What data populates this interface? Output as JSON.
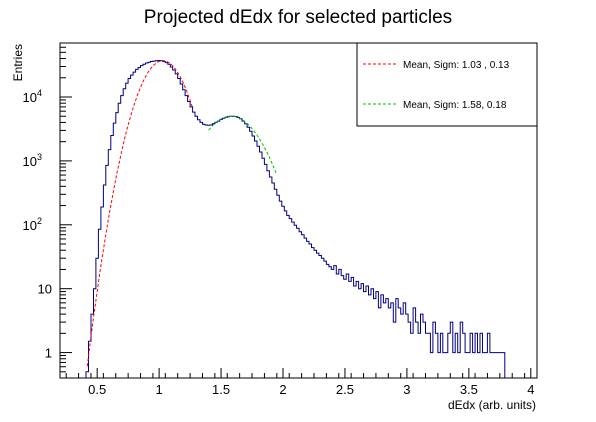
{
  "chart_data": {
    "type": "histogram",
    "title": "Projected dEdx for selected particles",
    "xlabel": "dEdx (arb. units)",
    "ylabel": "Entries",
    "xlim": [
      0.2,
      4.05
    ],
    "ylim": [
      0.4,
      70000
    ],
    "yscale": "log",
    "grid": false,
    "x_ticks": [
      {
        "value": 0.5,
        "label": "0.5"
      },
      {
        "value": 1.0,
        "label": "1"
      },
      {
        "value": 1.5,
        "label": "1.5"
      },
      {
        "value": 2.0,
        "label": "2"
      },
      {
        "value": 2.5,
        "label": "2.5"
      },
      {
        "value": 3.0,
        "label": "3"
      },
      {
        "value": 3.5,
        "label": "3.5"
      },
      {
        "value": 4.0,
        "label": "4"
      }
    ],
    "y_ticks": [
      {
        "value": 1,
        "label": "1"
      },
      {
        "value": 10,
        "label": "10"
      },
      {
        "value": 100,
        "label": "10",
        "exp": "2"
      },
      {
        "value": 1000,
        "label": "10",
        "exp": "3"
      },
      {
        "value": 10000,
        "label": "10",
        "exp": "4"
      }
    ],
    "histogram": {
      "color": "#000080",
      "bin_width": 0.02,
      "points": [
        [
          0.42,
          0.5
        ],
        [
          0.44,
          1.5
        ],
        [
          0.46,
          4
        ],
        [
          0.48,
          10
        ],
        [
          0.5,
          30
        ],
        [
          0.52,
          85
        ],
        [
          0.54,
          190
        ],
        [
          0.56,
          420
        ],
        [
          0.58,
          850
        ],
        [
          0.6,
          1500
        ],
        [
          0.62,
          2500
        ],
        [
          0.64,
          3900
        ],
        [
          0.66,
          5700
        ],
        [
          0.68,
          8000
        ],
        [
          0.7,
          10500
        ],
        [
          0.72,
          13500
        ],
        [
          0.74,
          16500
        ],
        [
          0.76,
          19500
        ],
        [
          0.78,
          22000
        ],
        [
          0.8,
          24500
        ],
        [
          0.82,
          27000
        ],
        [
          0.84,
          29000
        ],
        [
          0.86,
          31000
        ],
        [
          0.88,
          32500
        ],
        [
          0.9,
          34000
        ],
        [
          0.92,
          35000
        ],
        [
          0.94,
          36000
        ],
        [
          0.96,
          36500
        ],
        [
          0.98,
          37000
        ],
        [
          1.0,
          37200
        ],
        [
          1.02,
          36800
        ],
        [
          1.04,
          36000
        ],
        [
          1.06,
          34500
        ],
        [
          1.08,
          32500
        ],
        [
          1.1,
          29500
        ],
        [
          1.12,
          26500
        ],
        [
          1.14,
          23000
        ],
        [
          1.16,
          19500
        ],
        [
          1.18,
          16000
        ],
        [
          1.2,
          13000
        ],
        [
          1.22,
          10500
        ],
        [
          1.24,
          8500
        ],
        [
          1.26,
          7000
        ],
        [
          1.28,
          5800
        ],
        [
          1.3,
          5000
        ],
        [
          1.32,
          4400
        ],
        [
          1.34,
          4000
        ],
        [
          1.36,
          3750
        ],
        [
          1.38,
          3650
        ],
        [
          1.4,
          3600
        ],
        [
          1.42,
          3650
        ],
        [
          1.44,
          3800
        ],
        [
          1.46,
          4000
        ],
        [
          1.48,
          4200
        ],
        [
          1.5,
          4450
        ],
        [
          1.52,
          4650
        ],
        [
          1.54,
          4800
        ],
        [
          1.56,
          4900
        ],
        [
          1.58,
          5000
        ],
        [
          1.6,
          5000
        ],
        [
          1.62,
          4950
        ],
        [
          1.64,
          4800
        ],
        [
          1.66,
          4550
        ],
        [
          1.68,
          4200
        ],
        [
          1.7,
          3800
        ],
        [
          1.72,
          3350
        ],
        [
          1.74,
          2900
        ],
        [
          1.76,
          2450
        ],
        [
          1.78,
          2050
        ],
        [
          1.8,
          1700
        ],
        [
          1.82,
          1380
        ],
        [
          1.84,
          1100
        ],
        [
          1.86,
          880
        ],
        [
          1.88,
          700
        ],
        [
          1.9,
          560
        ],
        [
          1.92,
          450
        ],
        [
          1.94,
          360
        ],
        [
          1.96,
          290
        ],
        [
          1.98,
          235
        ],
        [
          2.0,
          195
        ],
        [
          2.02,
          165
        ],
        [
          2.04,
          140
        ],
        [
          2.06,
          125
        ],
        [
          2.08,
          110
        ],
        [
          2.1,
          98
        ],
        [
          2.12,
          88
        ],
        [
          2.14,
          78
        ],
        [
          2.16,
          70
        ],
        [
          2.18,
          62
        ],
        [
          2.2,
          55
        ],
        [
          2.22,
          50
        ],
        [
          2.24,
          44
        ],
        [
          2.26,
          40
        ],
        [
          2.28,
          36
        ],
        [
          2.3,
          33
        ],
        [
          2.32,
          30
        ],
        [
          2.34,
          27
        ],
        [
          2.36,
          24
        ],
        [
          2.38,
          22
        ],
        [
          2.4,
          20
        ],
        [
          2.42,
          23
        ],
        [
          2.44,
          17
        ],
        [
          2.46,
          20
        ],
        [
          2.48,
          16
        ],
        [
          2.5,
          14
        ],
        [
          2.52,
          17
        ],
        [
          2.54,
          13
        ],
        [
          2.56,
          15
        ],
        [
          2.58,
          11
        ],
        [
          2.6,
          13
        ],
        [
          2.62,
          10
        ],
        [
          2.64,
          12
        ],
        [
          2.66,
          9
        ],
        [
          2.68,
          11
        ],
        [
          2.7,
          8
        ],
        [
          2.72,
          10
        ],
        [
          2.74,
          7
        ],
        [
          2.76,
          9
        ],
        [
          2.78,
          5
        ],
        [
          2.8,
          8
        ],
        [
          2.82,
          6
        ],
        [
          2.84,
          7
        ],
        [
          2.86,
          5
        ],
        [
          2.88,
          6
        ],
        [
          2.9,
          3
        ],
        [
          2.92,
          7
        ],
        [
          2.94,
          5
        ],
        [
          2.96,
          4
        ],
        [
          2.98,
          6
        ],
        [
          3.0,
          4
        ],
        [
          3.02,
          3
        ],
        [
          3.04,
          2
        ],
        [
          3.06,
          5
        ],
        [
          3.08,
          3
        ],
        [
          3.1,
          2
        ],
        [
          3.12,
          4
        ],
        [
          3.14,
          3
        ],
        [
          3.16,
          2
        ],
        [
          3.18,
          2
        ],
        [
          3.2,
          1
        ],
        [
          3.22,
          3
        ],
        [
          3.24,
          2
        ],
        [
          3.26,
          1
        ],
        [
          3.28,
          2
        ],
        [
          3.3,
          1
        ],
        [
          3.32,
          1
        ],
        [
          3.34,
          2
        ],
        [
          3.36,
          3
        ],
        [
          3.38,
          1
        ],
        [
          3.4,
          2
        ],
        [
          3.42,
          1
        ],
        [
          3.44,
          3
        ],
        [
          3.46,
          2
        ],
        [
          3.48,
          1
        ],
        [
          3.5,
          1
        ],
        [
          3.52,
          2
        ],
        [
          3.54,
          1
        ],
        [
          3.56,
          2
        ],
        [
          3.58,
          1
        ],
        [
          3.6,
          2
        ],
        [
          3.62,
          1
        ],
        [
          3.64,
          1
        ],
        [
          3.66,
          2
        ],
        [
          3.68,
          1
        ],
        [
          3.7,
          1
        ],
        [
          3.72,
          1
        ],
        [
          3.74,
          1
        ],
        [
          3.76,
          1
        ],
        [
          3.78,
          1
        ]
      ]
    },
    "fits": [
      {
        "name": "Mean, Sigm:  1.03 , 0.13",
        "color": "#ff0000",
        "style": "dashed",
        "mean": 1.03,
        "sigma": 0.13,
        "amplitude": 37000,
        "x_range": [
          0.42,
          1.27
        ]
      },
      {
        "name": "Mean, Sigm: 1.58,  0.18",
        "color": "#00c000",
        "style": "dashed",
        "mean": 1.58,
        "sigma": 0.18,
        "amplitude": 5000,
        "x_range": [
          1.4,
          1.95
        ]
      }
    ],
    "legend": {
      "position": "top-right"
    }
  }
}
